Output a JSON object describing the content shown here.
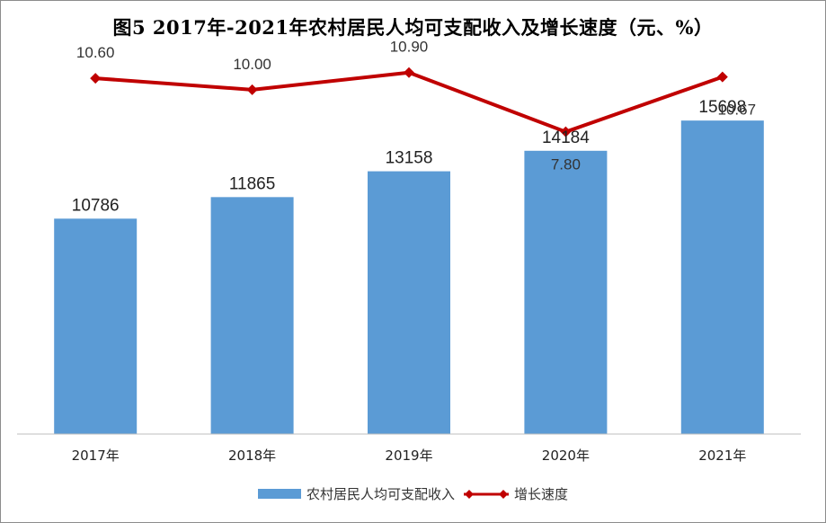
{
  "chart_data": {
    "type": "bar",
    "title": "图5 2017年-2021年农村居民人均可支配收入及增长速度（元、%）",
    "categories": [
      "2017年",
      "2018年",
      "2019年",
      "2020年",
      "2021年"
    ],
    "series": [
      {
        "name": "农村居民人均可支配收入",
        "type": "bar",
        "values": [
          10786,
          11865,
          13158,
          14184,
          15698
        ],
        "labels": [
          "10786",
          "11865",
          "13158",
          "14184",
          "15698"
        ],
        "color": "#5b9bd5"
      },
      {
        "name": "增长速度",
        "type": "line",
        "values": [
          10.6,
          10.0,
          10.9,
          7.8,
          10.67
        ],
        "labels": [
          "10.60",
          "10.00",
          "10.90",
          "7.80",
          "10.67"
        ],
        "color": "#c00000",
        "marker": "diamond"
      }
    ],
    "ylim_bar": [
      0,
      18000
    ],
    "ylim_line": [
      -8,
      13
    ],
    "grid": false,
    "legend_position": "bottom"
  }
}
